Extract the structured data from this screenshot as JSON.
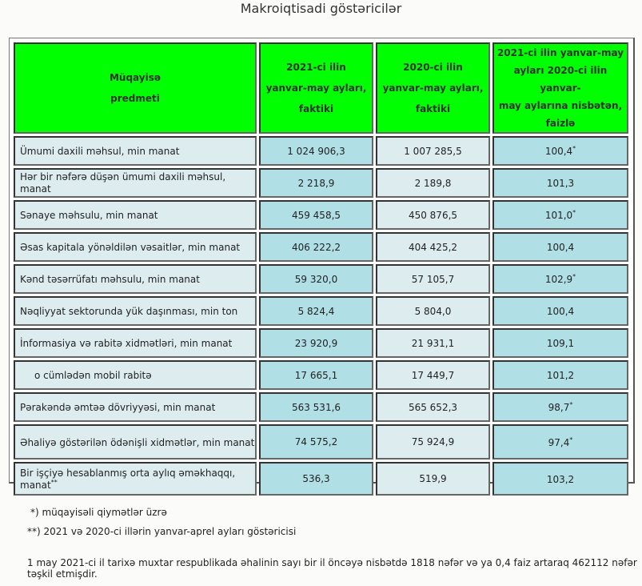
{
  "title": "Makroiqtisadi göstəricilər",
  "header": {
    "col1": [
      "Müqayisə",
      "predmeti"
    ],
    "col2": [
      "2021-ci ilin",
      "yanvar-may ayları,",
      "faktiki"
    ],
    "col3": [
      "2020-ci ilin",
      "yanvar-may ayları,",
      "faktiki"
    ],
    "col4": [
      "2021-ci ilin yanvar-may",
      "ayları 2020-ci ilin yanvar-",
      "may aylarına nisbətən,",
      "faizlə"
    ]
  },
  "rows": [
    {
      "label": "Ümumi daxili məhsul, min manat",
      "v2021": "1 024 906,3",
      "v2020": "1 007 285,5",
      "pct": "100,4",
      "mark": "*",
      "labelMark": ""
    },
    {
      "label": "Hər bir nəfərə düşən ümumi daxili məhsul, manat",
      "v2021": "2 218,9",
      "v2020": "2 189,8",
      "pct": "101,3",
      "mark": "",
      "labelMark": ""
    },
    {
      "label": "Sənaye məhsulu, min manat",
      "v2021": "459 458,5",
      "v2020": "450 876,5",
      "pct": "101,0",
      "mark": "*",
      "labelMark": ""
    },
    {
      "label": "Əsas kapitala yönəldilən vəsaitlər, min manat",
      "v2021": "406 222,2",
      "v2020": "404 425,2",
      "pct": "100,4",
      "mark": "",
      "labelMark": ""
    },
    {
      "label": "Kənd təsərrüfatı məhsulu, min manat",
      "v2021": "59 320,0",
      "v2020": "57 105,7",
      "pct": "102,9",
      "mark": "*",
      "labelMark": ""
    },
    {
      "label": "Nəqliyyat sektorunda yük daşınması, min ton",
      "v2021": "5 824,4",
      "v2020": "5 804,0",
      "pct": "100,4",
      "mark": "",
      "labelMark": ""
    },
    {
      "label": "İnformasiya və rabitə xidmətləri, min manat",
      "v2021": "23 920,9",
      "v2020": "21 931,1",
      "pct": "109,1",
      "mark": "",
      "labelMark": ""
    },
    {
      "label": "o cümlədən mobil rabitə",
      "v2021": "17 665,1",
      "v2020": "17 449,7",
      "pct": "101,2",
      "mark": "",
      "labelMark": ""
    },
    {
      "label": "Pərakəndə əmtəə dövriyyəsi, min manat",
      "v2021": "563 531,6",
      "v2020": "565 652,3",
      "pct": "98,7",
      "mark": "*",
      "labelMark": ""
    },
    {
      "label": "Əhaliyə göstərilən ödənişli xidmətlər, min manat",
      "v2021": "74 575,2",
      "v2020": "75 924,9",
      "pct": "97,4",
      "mark": "*",
      "labelMark": ""
    },
    {
      "label": "Bir işçiyə hesablanmış orta aylıq əməkhaqqı, manat",
      "v2021": "536,3",
      "v2020": "519,9",
      "pct": "103,2",
      "mark": "",
      "labelMark": "**"
    }
  ],
  "footnotes": [
    "*) müqayisəli qiymətlər üzrə",
    "**) 2021 və 2020-ci illərin yanvar-aprel ayları göstəricisi"
  ],
  "population_note": "1 may 2021-ci il tarixə muxtar respublikada əhalinin sayı bir il öncəyə nisbətdə 1818 nəfər və ya 0,4 faiz artaraq 462112 nəfər təşkil etmişdir.",
  "colors": {
    "header": "#00ff00",
    "cyan": "#b0e0e6",
    "light": "#ddedef"
  }
}
